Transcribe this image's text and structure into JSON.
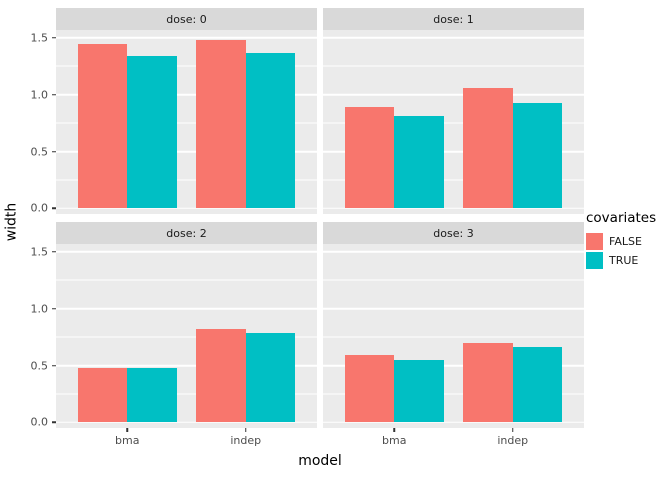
{
  "chart_data": {
    "type": "bar",
    "title": "",
    "xlabel": "model",
    "ylabel": "width",
    "legend_title": "covariates",
    "legend_position": "right",
    "categories": [
      "bma",
      "indep"
    ],
    "series": [
      {
        "name": "FALSE",
        "color": "#F8766D"
      },
      {
        "name": "TRUE",
        "color": "#00BFC4"
      }
    ],
    "facet_variable": "dose",
    "facets": [
      {
        "label": "dose: 0",
        "values": {
          "FALSE": [
            1.45,
            1.48
          ],
          "TRUE": [
            1.34,
            1.37
          ]
        }
      },
      {
        "label": "dose: 1",
        "values": {
          "FALSE": [
            0.89,
            1.06
          ],
          "TRUE": [
            0.81,
            0.93
          ]
        }
      },
      {
        "label": "dose: 2",
        "values": {
          "FALSE": [
            0.48,
            0.82
          ],
          "TRUE": [
            0.48,
            0.79
          ]
        }
      },
      {
        "label": "dose: 3",
        "values": {
          "FALSE": [
            0.59,
            0.7
          ],
          "TRUE": [
            0.55,
            0.66
          ]
        }
      }
    ],
    "y_ticks": [
      0.0,
      0.5,
      1.0,
      1.5
    ],
    "y_tick_labels": [
      "0.0",
      "0.5",
      "1.0",
      "1.5"
    ],
    "y_minor": [
      0.25,
      0.75,
      1.25
    ],
    "ylim": [
      -0.05,
      1.57
    ],
    "grid": true,
    "panel_bg": "#EBEBEB",
    "strip_bg": "#D9D9D9",
    "gridline_color": "#FFFFFF"
  }
}
